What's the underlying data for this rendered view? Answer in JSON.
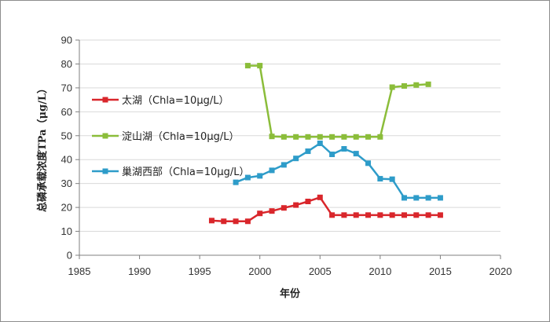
{
  "chart_data": {
    "type": "line",
    "title": "",
    "xlabel": "年份",
    "ylabel": "总磷承载浓度TPa（μg/L）",
    "xlim": [
      1985,
      2020
    ],
    "ylim": [
      0,
      90
    ],
    "xticks": [
      1985,
      1990,
      1995,
      2000,
      2005,
      2010,
      2015,
      2020
    ],
    "yticks": [
      0,
      10,
      20,
      30,
      40,
      50,
      60,
      70,
      80,
      90
    ],
    "grid": "horizontal",
    "legend_position": "left, inside plot",
    "series": [
      {
        "name": "太湖（Chla=10μg/L）",
        "color": "#d9262b",
        "x": [
          1996,
          1997,
          1998,
          1999,
          2000,
          2001,
          2002,
          2003,
          2004,
          2005,
          2006,
          2007,
          2008,
          2009,
          2010,
          2011,
          2012,
          2013,
          2014,
          2015
        ],
        "y": [
          14.5,
          14.2,
          14.2,
          14.2,
          17.5,
          18.5,
          19.8,
          21.0,
          22.5,
          24.2,
          16.8,
          16.8,
          16.8,
          16.8,
          16.8,
          16.8,
          16.8,
          16.8,
          16.8,
          16.8
        ]
      },
      {
        "name": "淀山湖（Chla=10μg/L）",
        "color": "#8bbd3a",
        "x": [
          1999,
          2000,
          2001,
          2002,
          2003,
          2004,
          2005,
          2006,
          2007,
          2008,
          2009,
          2010,
          2011,
          2012,
          2013,
          2014
        ],
        "y": [
          79.3,
          79.3,
          49.7,
          49.5,
          49.5,
          49.5,
          49.5,
          49.5,
          49.5,
          49.5,
          49.5,
          49.5,
          70.3,
          70.8,
          71.2,
          71.5
        ]
      },
      {
        "name": "巢湖西部（Chla=10μg/L）",
        "color": "#2e9cc9",
        "x": [
          1998,
          1999,
          2000,
          2001,
          2002,
          2003,
          2004,
          2005,
          2006,
          2007,
          2008,
          2009,
          2010,
          2011,
          2012,
          2013,
          2014,
          2015
        ],
        "y": [
          30.5,
          32.5,
          33.2,
          35.5,
          37.8,
          40.5,
          43.5,
          46.8,
          42.2,
          44.5,
          42.5,
          38.5,
          32.0,
          31.8,
          24.0,
          24.0,
          24.0,
          24.0
        ]
      }
    ]
  }
}
